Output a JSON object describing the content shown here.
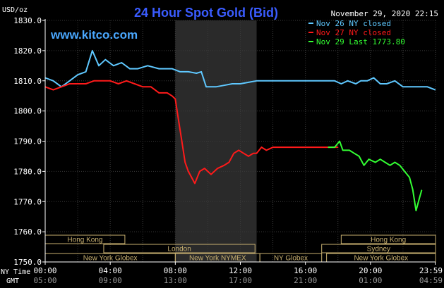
{
  "chart_data": {
    "type": "line",
    "title": "24 Hour Spot Gold (Bid)",
    "site": "www.kitco.com",
    "timestamp": "November 29, 2020 22:15",
    "y_unit": "USD/oz",
    "ylim": [
      1750,
      1830
    ],
    "y_ticks": [
      "1830.0",
      "1820.0",
      "1810.0",
      "1800.0",
      "1790.0",
      "1780.0",
      "1770.0",
      "1760.0",
      "1750.0"
    ],
    "x_ticks_ny": [
      "00:00",
      "04:00",
      "08:00",
      "12:00",
      "16:00",
      "20:00",
      "23:59"
    ],
    "x_ticks_gmt": [
      "05:00",
      "09:00",
      "13:00",
      "17:00",
      "21:00",
      "01:00",
      "04:59"
    ],
    "x_row_labels": {
      "ny": "NY Time",
      "gmt": "GMT"
    },
    "xlim_hours": [
      0,
      24
    ],
    "shaded_hours": [
      8,
      13
    ],
    "grid": true,
    "legend_position": "top-right",
    "colors": {
      "nov26": "#5fc8ff",
      "nov27": "#ff1a1a",
      "nov29": "#33ff33",
      "axis": "#ffffff",
      "grid": "#3a3a3a",
      "shade": "#2a2a2a",
      "title": "#3a5cff",
      "site": "#4aa8ff",
      "legend_text": "#3a5cff",
      "session_border": "#c8b070",
      "session_text": "#c8b070"
    },
    "legend": [
      {
        "label": "Nov 26 NY closed",
        "color": "#5fc8ff"
      },
      {
        "label": "Nov 27 NY closed",
        "color": "#ff1a1a"
      },
      {
        "label": "Nov 29 Last 1773.80",
        "color": "#33ff33"
      }
    ],
    "sessions_top": [
      {
        "label": "Hong Kong",
        "start": 0,
        "end": 4.9
      },
      {
        "label": "Hong Kong",
        "start": 18.2,
        "end": 24
      }
    ],
    "sessions_mid": [
      {
        "label": "London",
        "start": 3.6,
        "end": 12.9
      },
      {
        "label": "Sydney",
        "start": 17,
        "end": 24
      }
    ],
    "sessions_bottom": [
      {
        "label": "New York Globex",
        "start": 0,
        "end": 8
      },
      {
        "label": "New York NYMEX",
        "start": 8,
        "end": 13.2
      },
      {
        "label": "NY Globex",
        "start": 13.2,
        "end": 17
      },
      {
        "label": "New York Globex",
        "start": 17.3,
        "end": 24
      }
    ],
    "series": [
      {
        "name": "Nov 26 NY closed",
        "color": "#5fc8ff",
        "points": [
          [
            0,
            1811
          ],
          [
            0.5,
            1810
          ],
          [
            1,
            1808
          ],
          [
            1.5,
            1810
          ],
          [
            2,
            1812
          ],
          [
            2.5,
            1813
          ],
          [
            2.9,
            1820
          ],
          [
            3.3,
            1815
          ],
          [
            3.7,
            1817
          ],
          [
            4.2,
            1815
          ],
          [
            4.7,
            1816
          ],
          [
            5.2,
            1814
          ],
          [
            5.7,
            1814
          ],
          [
            6.3,
            1815
          ],
          [
            7,
            1814
          ],
          [
            7.8,
            1814
          ],
          [
            8.3,
            1813
          ],
          [
            8.8,
            1813
          ],
          [
            9.3,
            1812.5
          ],
          [
            9.6,
            1813
          ],
          [
            9.9,
            1808
          ],
          [
            10.5,
            1808
          ],
          [
            11,
            1808.5
          ],
          [
            11.5,
            1809
          ],
          [
            12,
            1809
          ],
          [
            12.5,
            1809.5
          ],
          [
            13,
            1810
          ],
          [
            14,
            1810
          ],
          [
            15,
            1810
          ],
          [
            16,
            1810
          ],
          [
            17,
            1810
          ],
          [
            17.8,
            1810
          ],
          [
            18.2,
            1809
          ],
          [
            18.6,
            1810
          ],
          [
            19.1,
            1809
          ],
          [
            19.4,
            1810
          ],
          [
            19.8,
            1810
          ],
          [
            20.2,
            1811
          ],
          [
            20.6,
            1809
          ],
          [
            21,
            1809
          ],
          [
            21.5,
            1810
          ],
          [
            22,
            1808
          ],
          [
            22.5,
            1808
          ],
          [
            23,
            1808
          ],
          [
            23.5,
            1808
          ],
          [
            23.98,
            1807
          ]
        ]
      },
      {
        "name": "Nov 27 NY closed",
        "color": "#ff1a1a",
        "points": [
          [
            0,
            1808
          ],
          [
            0.5,
            1807
          ],
          [
            1,
            1808
          ],
          [
            1.5,
            1809
          ],
          [
            2,
            1809
          ],
          [
            2.5,
            1809
          ],
          [
            3,
            1810
          ],
          [
            3.5,
            1810
          ],
          [
            4,
            1810
          ],
          [
            4.5,
            1809
          ],
          [
            5,
            1810
          ],
          [
            5.5,
            1809
          ],
          [
            6,
            1808
          ],
          [
            6.5,
            1808
          ],
          [
            7,
            1806
          ],
          [
            7.5,
            1806
          ],
          [
            7.8,
            1805
          ],
          [
            8,
            1804
          ],
          [
            8.2,
            1797
          ],
          [
            8.4,
            1790
          ],
          [
            8.6,
            1783
          ],
          [
            8.8,
            1780
          ],
          [
            9,
            1778
          ],
          [
            9.2,
            1776
          ],
          [
            9.5,
            1780
          ],
          [
            9.8,
            1781
          ],
          [
            10.2,
            1779
          ],
          [
            10.6,
            1781
          ],
          [
            11,
            1782
          ],
          [
            11.3,
            1783
          ],
          [
            11.6,
            1786
          ],
          [
            11.9,
            1787
          ],
          [
            12.2,
            1786
          ],
          [
            12.5,
            1785
          ],
          [
            12.8,
            1786
          ],
          [
            13,
            1786
          ],
          [
            13.3,
            1788
          ],
          [
            13.6,
            1787
          ],
          [
            14,
            1788
          ],
          [
            15,
            1788
          ],
          [
            16,
            1788
          ],
          [
            17,
            1788
          ],
          [
            18,
            1788
          ]
        ]
      },
      {
        "name": "Nov 29 Last 1773.80",
        "color": "#33ff33",
        "points": [
          [
            17.4,
            1788
          ],
          [
            17.8,
            1788
          ],
          [
            18.1,
            1790
          ],
          [
            18.3,
            1787
          ],
          [
            18.7,
            1787
          ],
          [
            19,
            1786
          ],
          [
            19.3,
            1785
          ],
          [
            19.6,
            1782
          ],
          [
            19.9,
            1784
          ],
          [
            20.3,
            1783
          ],
          [
            20.6,
            1784
          ],
          [
            20.9,
            1783
          ],
          [
            21.2,
            1782
          ],
          [
            21.5,
            1783
          ],
          [
            21.8,
            1782
          ],
          [
            22.1,
            1780
          ],
          [
            22.4,
            1778
          ],
          [
            22.6,
            1774
          ],
          [
            22.8,
            1767
          ],
          [
            23,
            1771
          ],
          [
            23.15,
            1773.8
          ]
        ]
      }
    ]
  }
}
